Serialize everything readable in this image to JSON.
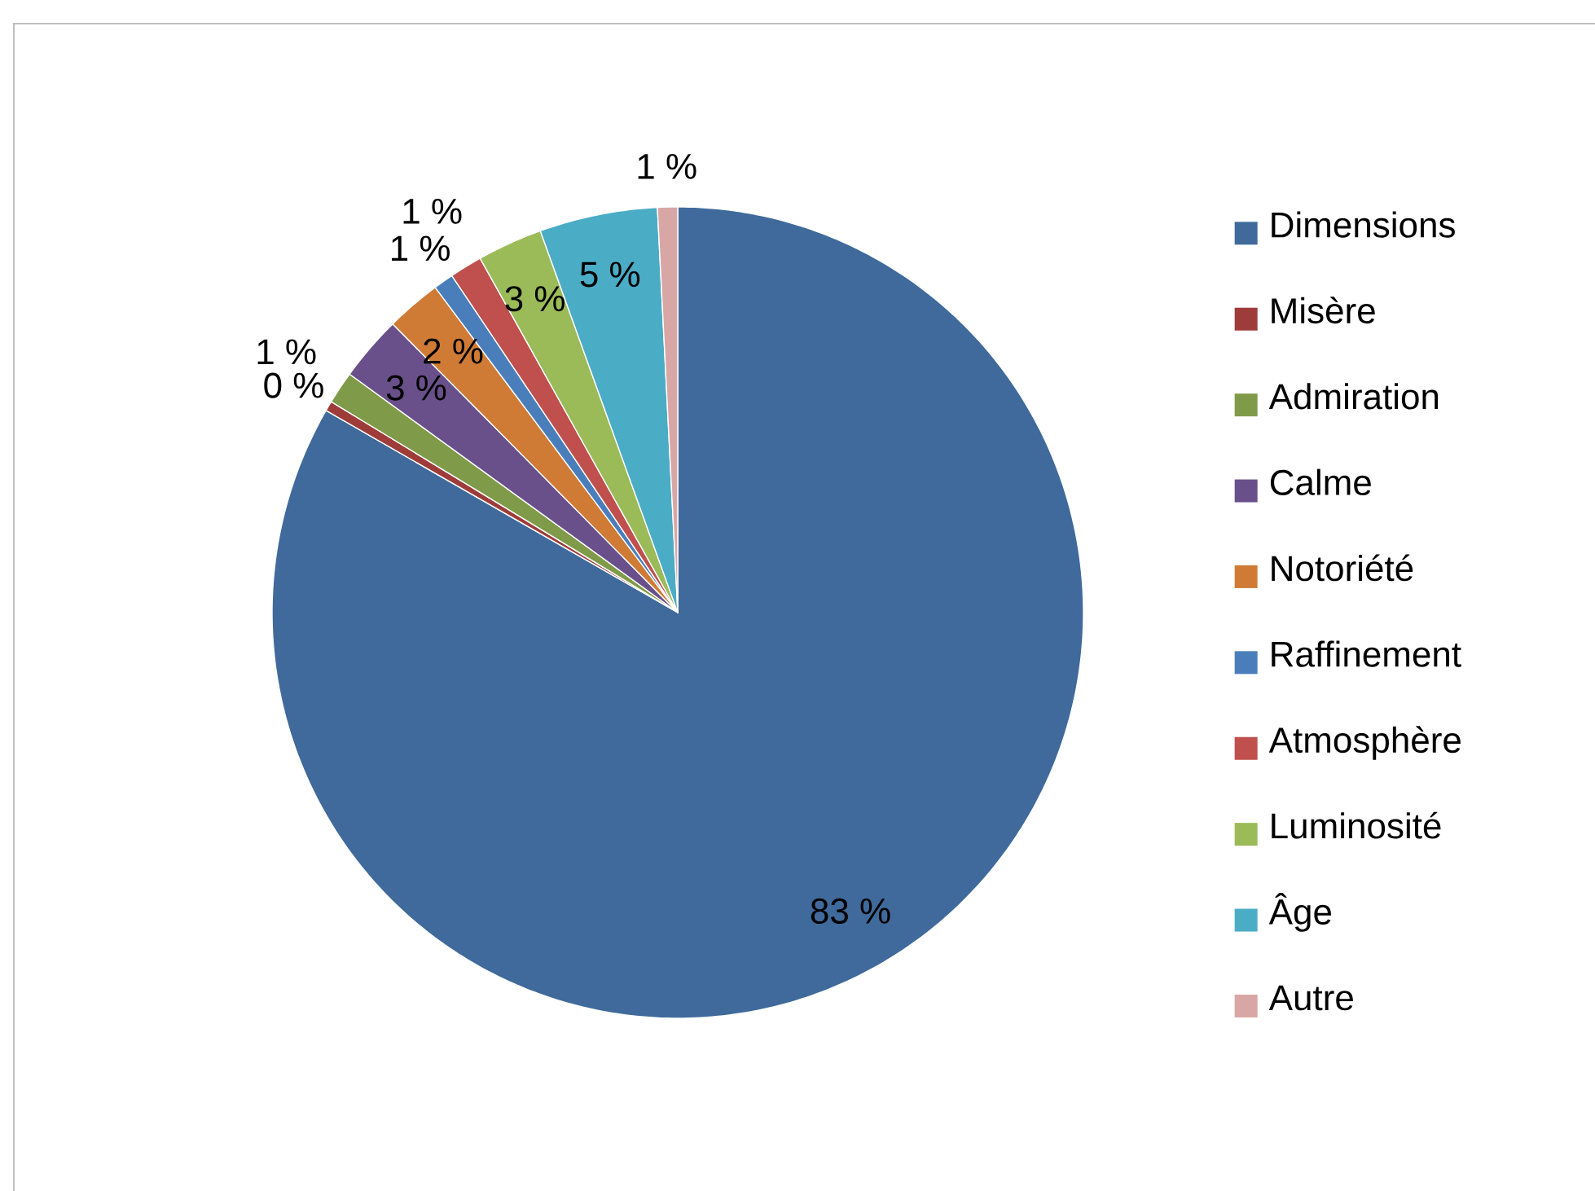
{
  "chart_data": {
    "type": "pie",
    "categories": [
      "Dimensions",
      "Misère",
      "Admiration",
      "Calme",
      "Notoriété",
      "Raffinement",
      "Atmosphère",
      "Luminosité",
      "Âge",
      "Autre"
    ],
    "values": [
      83.3,
      0.4,
      1.3,
      2.6,
      2.2,
      0.8,
      1.3,
      2.6,
      4.7,
      0.8
    ],
    "colors": [
      "#3F6A9B",
      "#9E3C3A",
      "#7F9A48",
      "#69508A",
      "#D07B35",
      "#4A7EBB",
      "#C0504D",
      "#9BBB59",
      "#4BACC6",
      "#D9A6A6"
    ],
    "value_labels": [
      "83 %",
      "0 %",
      "1 %",
      "3 %",
      "2 %",
      "1 %",
      "1 %",
      "3 %",
      "5 %",
      "1 %"
    ],
    "legend": "right"
  }
}
